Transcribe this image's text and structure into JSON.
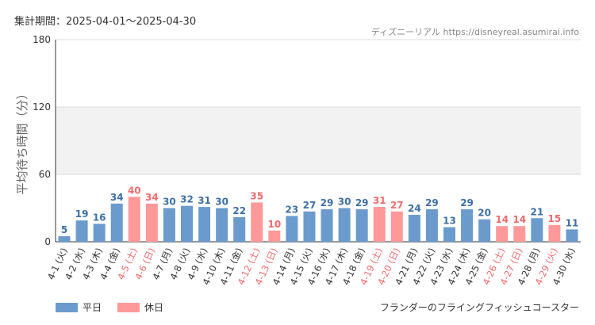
{
  "header": {
    "period": "集計期間：2025-04-01〜2025-04-30",
    "source": "ディズニーリアル https://disneyreal.asumirai.info"
  },
  "legend": {
    "weekday_label": "平日",
    "holiday_label": "休日"
  },
  "footer": {
    "attraction": "フランダーのフライングフィッシュコースター"
  },
  "colors": {
    "weekday": "#6b9bcc",
    "holiday": "#ff9999",
    "weekday_text": "#3c6fa5",
    "holiday_text": "#f06b6b",
    "grid_band": "#f2f2f2"
  },
  "chart_data": {
    "type": "bar",
    "title": "",
    "ylabel": "平均待ち時間（分）",
    "xlabel": "",
    "ylim": [
      0,
      180
    ],
    "yticks": [
      0,
      60,
      120,
      180
    ],
    "categories": [
      "4-1 (火)",
      "4-2 (水)",
      "4-3 (木)",
      "4-4 (金)",
      "4-5 (土)",
      "4-6 (日)",
      "4-7 (月)",
      "4-8 (火)",
      "4-9 (水)",
      "4-10 (木)",
      "4-11 (金)",
      "4-12 (土)",
      "4-13 (日)",
      "4-14 (月)",
      "4-15 (火)",
      "4-16 (水)",
      "4-17 (木)",
      "4-18 (金)",
      "4-19 (土)",
      "4-20 (日)",
      "4-21 (月)",
      "4-22 (火)",
      "4-23 (水)",
      "4-24 (木)",
      "4-25 (金)",
      "4-26 (土)",
      "4-27 (日)",
      "4-28 (月)",
      "4-29 (火)",
      "4-30 (水)"
    ],
    "values": [
      5,
      19,
      16,
      34,
      40,
      34,
      30,
      32,
      31,
      30,
      22,
      35,
      10,
      23,
      27,
      29,
      30,
      29,
      31,
      27,
      24,
      29,
      13,
      29,
      20,
      14,
      14,
      21,
      15,
      11
    ],
    "holiday": [
      false,
      false,
      false,
      false,
      true,
      true,
      false,
      false,
      false,
      false,
      false,
      true,
      true,
      false,
      false,
      false,
      false,
      false,
      true,
      true,
      false,
      false,
      false,
      false,
      false,
      true,
      true,
      false,
      true,
      false
    ],
    "legend_position": "bottom-left"
  }
}
